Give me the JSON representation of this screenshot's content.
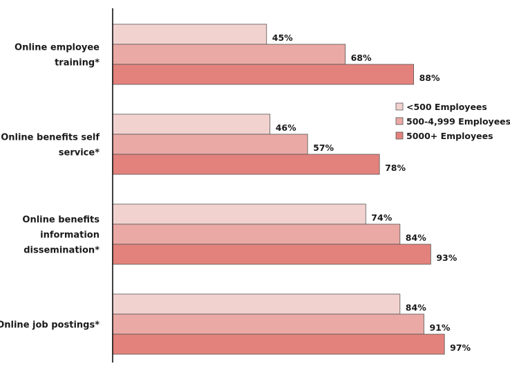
{
  "chart_data": {
    "type": "bar",
    "orientation": "horizontal",
    "categories": [
      [
        "Online employee",
        "training*"
      ],
      [
        "Online benefits self",
        "service*"
      ],
      [
        "Online benefits",
        "information",
        "dissemination*"
      ],
      [
        "Online job postings*"
      ]
    ],
    "series": [
      {
        "name": "<500 Employees",
        "color": "#f2d2cf",
        "values": [
          45,
          46,
          74,
          84
        ]
      },
      {
        "name": "500-4,999 Employees",
        "color": "#eaa9a5",
        "values": [
          68,
          57,
          84,
          91
        ]
      },
      {
        "name": "5000+ Employees",
        "color": "#e3827c",
        "values": [
          88,
          78,
          93,
          97
        ]
      }
    ],
    "value_suffix": "%",
    "xlim": [
      0,
      100
    ],
    "grid": false,
    "legend_position": "right"
  }
}
